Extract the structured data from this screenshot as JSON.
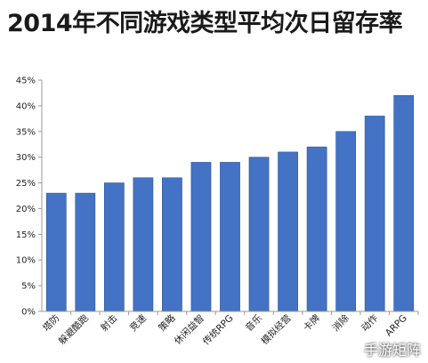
{
  "title": "2014年不同游戏类型平均次日留存率",
  "watermark": "手游矩阵",
  "colors": {
    "bar": "#4472C4",
    "bar_edge": "#2F5597",
    "axis": "#999999",
    "grid": "#d9d9d9",
    "text": "#222222"
  },
  "chart_data": {
    "type": "bar",
    "title": "2014年不同游戏类型平均次日留存率",
    "xlabel": "",
    "ylabel": "",
    "categories": [
      "塔防",
      "躲避酷跑",
      "射击",
      "竞速",
      "策略",
      "休闲益智",
      "传统RPG",
      "音乐",
      "模拟经营",
      "卡牌",
      "消除",
      "动作",
      "ARPG"
    ],
    "values": [
      23,
      23,
      25,
      26,
      26,
      29,
      29,
      30,
      31,
      32,
      35,
      38,
      42
    ],
    "yticks": [
      "0%",
      "5%",
      "10%",
      "15%",
      "20%",
      "25%",
      "30%",
      "35%",
      "40%",
      "45%"
    ],
    "ylim": [
      0,
      45
    ],
    "grid": false,
    "legend": "none"
  }
}
